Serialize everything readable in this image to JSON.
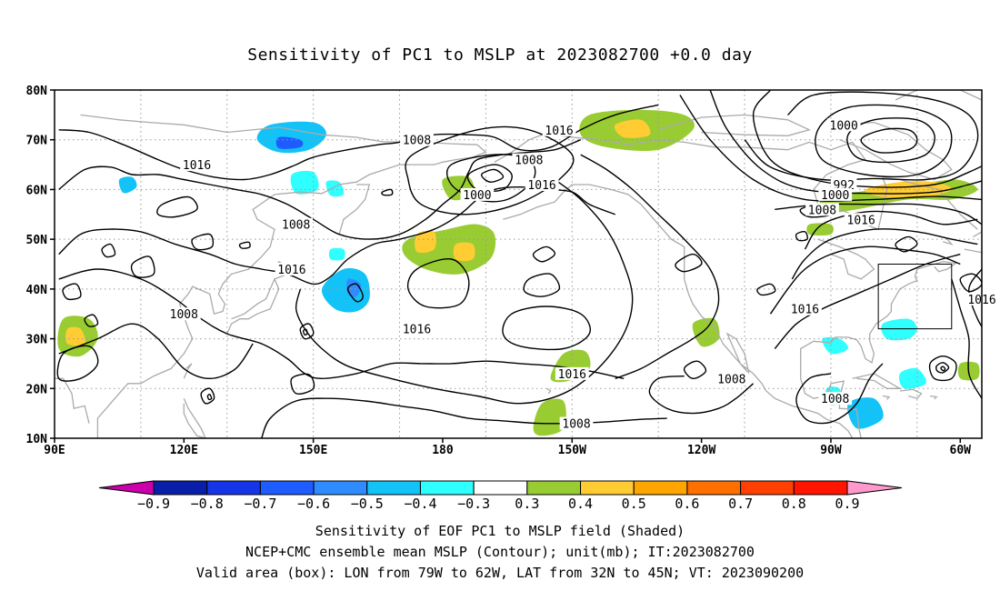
{
  "title": "Sensitivity of PC1 to MSLP at 2023082700 +0.0 day",
  "map": {
    "lon_range": [
      "90E",
      "55W"
    ],
    "lat_range": [
      10,
      80
    ],
    "lat_labels": [
      "80N",
      "70N",
      "60N",
      "50N",
      "40N",
      "30N",
      "20N",
      "10N"
    ],
    "lon_labels": [
      "90E",
      "120E",
      "150E",
      "180",
      "150W",
      "120W",
      "90W",
      "60W"
    ],
    "valid_box": {
      "lon_min": "79W",
      "lon_max": "62W",
      "lat_min": "32N",
      "lat_max": "45N"
    },
    "contour_labels": [
      {
        "text": "1016",
        "lon": -153,
        "lat": 72
      },
      {
        "text": "1008",
        "lon": 174,
        "lat": 70
      },
      {
        "text": "1016",
        "lon": 123,
        "lat": 65
      },
      {
        "text": "1008",
        "lon": -160,
        "lat": 66
      },
      {
        "text": "1000",
        "lon": -172,
        "lat": 59
      },
      {
        "text": "1016",
        "lon": -157,
        "lat": 61
      },
      {
        "text": "1008",
        "lon": 146,
        "lat": 53
      },
      {
        "text": "1016",
        "lon": 145,
        "lat": 44
      },
      {
        "text": "1008",
        "lon": 120,
        "lat": 35
      },
      {
        "text": "1016",
        "lon": 174,
        "lat": 32
      },
      {
        "text": "1016",
        "lon": -150,
        "lat": 23
      },
      {
        "text": "1008",
        "lon": -113,
        "lat": 22
      },
      {
        "text": "1008",
        "lon": -149,
        "lat": 13
      },
      {
        "text": "1000",
        "lon": -87,
        "lat": 73
      },
      {
        "text": "992",
        "lon": -87,
        "lat": 61
      },
      {
        "text": "1000",
        "lon": -89,
        "lat": 59
      },
      {
        "text": "1008",
        "lon": -92,
        "lat": 56
      },
      {
        "text": "1016",
        "lon": -83,
        "lat": 54
      },
      {
        "text": "1016",
        "lon": -96,
        "lat": 36
      },
      {
        "text": "1016",
        "lon": -55,
        "lat": 38
      },
      {
        "text": "1008",
        "lon": -89,
        "lat": 18
      }
    ]
  },
  "colorbar": {
    "labels": [
      "-0.9",
      "-0.8",
      "-0.7",
      "-0.6",
      "-0.5",
      "-0.4",
      "-0.3",
      "0.3",
      "0.4",
      "0.5",
      "0.6",
      "0.7",
      "0.8",
      "0.9"
    ],
    "colors": [
      "#cc00aa",
      "#0a1fa8",
      "#1535e6",
      "#1e5cff",
      "#2f8cff",
      "#13c3f7",
      "#2fffff",
      "#ffffff",
      "#99cc33",
      "#ffcc33",
      "#ffa500",
      "#ff7000",
      "#ff4000",
      "#ff1500",
      "#ff99cc"
    ]
  },
  "captions": {
    "line1": "Sensitivity of EOF PC1 to MSLP field (Shaded)",
    "line2": "NCEP+CMC ensemble mean MSLP (Contour); unit(mb); IT:2023082700",
    "line3": "Valid area (box): LON from 79W to 62W, LAT from 32N to 45N; VT: 2023090200"
  }
}
